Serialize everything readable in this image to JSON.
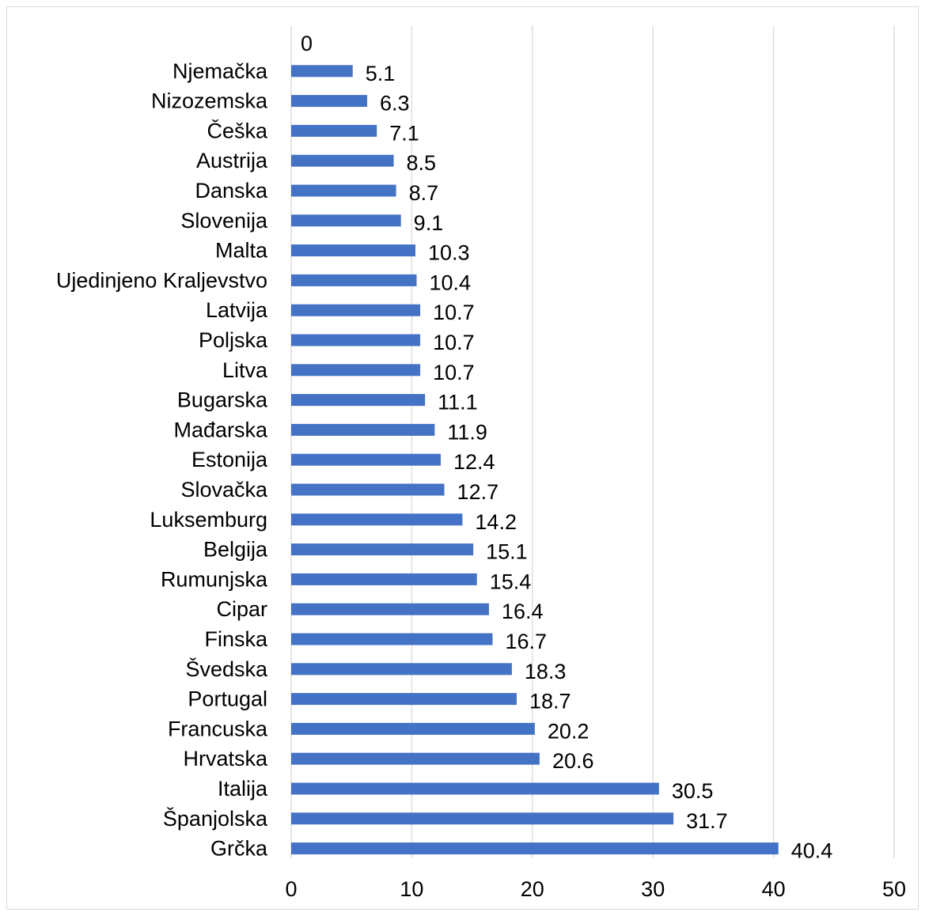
{
  "colors": {
    "bar": "#4472C4",
    "gridline": "#d9d9d9",
    "text": "#000000"
  },
  "chart_data": {
    "type": "bar",
    "orientation": "horizontal",
    "title": "",
    "xlabel": "",
    "ylabel": "",
    "xlim": [
      0,
      50
    ],
    "xticks": [
      0,
      10,
      20,
      30,
      40,
      50
    ],
    "grid": true,
    "legend": "none",
    "categories": [
      "",
      "Njemačka",
      "Nizozemska",
      "Češka",
      "Austrija",
      "Danska",
      "Slovenija",
      "Malta",
      "Ujedinjeno Kraljevstvo",
      "Latvija",
      "Poljska",
      "Litva",
      "Bugarska",
      "Mađarska",
      "Estonija",
      "Slovačka",
      "Luksemburg",
      "Belgija",
      "Rumunjska",
      "Cipar",
      "Finska",
      "Švedska",
      "Portugal",
      "Francuska",
      "Hrvatska",
      "Italija",
      "Španjolska",
      "Grčka"
    ],
    "values": [
      0,
      5.1,
      6.3,
      7.1,
      8.5,
      8.7,
      9.1,
      10.3,
      10.4,
      10.7,
      10.7,
      10.7,
      11.1,
      11.9,
      12.4,
      12.7,
      14.2,
      15.1,
      15.4,
      16.4,
      16.7,
      18.3,
      18.7,
      20.2,
      20.6,
      30.5,
      31.7,
      40.4
    ],
    "value_labels": [
      "0",
      "5.1",
      "6.3",
      "7.1",
      "8.5",
      "8.7",
      "9.1",
      "10.3",
      "10.4",
      "10.7",
      "10.7",
      "10.7",
      "11.1",
      "11.9",
      "12.4",
      "12.7",
      "14.2",
      "15.1",
      "15.4",
      "16.4",
      "16.7",
      "18.3",
      "18.7",
      "20.2",
      "20.6",
      "30.5",
      "31.7",
      "40.4"
    ]
  }
}
